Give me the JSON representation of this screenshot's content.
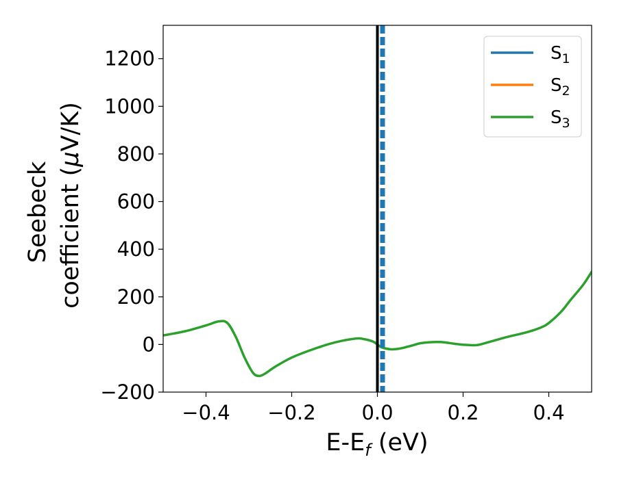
{
  "chart_data": {
    "type": "line",
    "xlabel": {
      "main": "E-E",
      "sub": "f",
      "rest": " (eV)"
    },
    "ylabel": {
      "line1": "Seebeck",
      "line2_prefix": "coefficient  (",
      "mu": "μ",
      "line2_suffix": "V/K)"
    },
    "xlim": [
      -0.5,
      0.5
    ],
    "ylim": [
      -200,
      1340
    ],
    "xticks": [
      -0.4,
      -0.2,
      0.0,
      0.2,
      0.4
    ],
    "xtick_labels": [
      "−0.4",
      "−0.2",
      "0.0",
      "0.2",
      "0.4"
    ],
    "yticks": [
      -200,
      0,
      200,
      400,
      600,
      800,
      1000,
      1200
    ],
    "ytick_labels": [
      "−200",
      "0",
      "200",
      "400",
      "600",
      "800",
      "1000",
      "1200"
    ],
    "grid": false,
    "legend_position": "top-right",
    "series": [
      {
        "name": "S",
        "sub": "1",
        "color": "#1f77b4",
        "x": [],
        "y": []
      },
      {
        "name": "S",
        "sub": "2",
        "color": "#ff7f0e",
        "x": [],
        "y": []
      },
      {
        "name": "S",
        "sub": "3",
        "color": "#2ca02c",
        "x": [
          -0.5,
          -0.45,
          -0.4,
          -0.37,
          -0.35,
          -0.33,
          -0.31,
          -0.29,
          -0.275,
          -0.26,
          -0.24,
          -0.2,
          -0.15,
          -0.1,
          -0.05,
          -0.03,
          -0.01,
          0.0,
          0.01,
          0.03,
          0.05,
          0.08,
          0.1,
          0.13,
          0.15,
          0.18,
          0.2,
          0.23,
          0.25,
          0.3,
          0.35,
          0.38,
          0.4,
          0.43,
          0.45,
          0.48,
          0.5
        ],
        "y": [
          38,
          55,
          80,
          97,
          90,
          30,
          -55,
          -120,
          -132,
          -120,
          -95,
          -55,
          -20,
          8,
          25,
          22,
          12,
          0,
          -12,
          -20,
          -18,
          -5,
          5,
          10,
          10,
          3,
          -1,
          -3,
          5,
          30,
          52,
          70,
          90,
          140,
          185,
          250,
          305
        ]
      }
    ],
    "vlines": [
      {
        "x": 0.0,
        "color": "#000000",
        "style": "solid"
      },
      {
        "x": 0.012,
        "color": "#1f77b4",
        "style": "dashed"
      }
    ]
  }
}
